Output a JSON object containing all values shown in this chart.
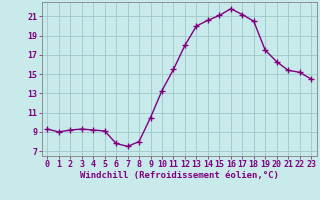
{
  "x": [
    0,
    1,
    2,
    3,
    4,
    5,
    6,
    7,
    8,
    9,
    10,
    11,
    12,
    13,
    14,
    15,
    16,
    17,
    18,
    19,
    20,
    21,
    22,
    23
  ],
  "y": [
    9.3,
    9.0,
    9.2,
    9.3,
    9.2,
    9.1,
    7.8,
    7.5,
    8.0,
    10.5,
    13.3,
    15.5,
    18.0,
    20.0,
    20.6,
    21.1,
    21.8,
    21.2,
    20.5,
    17.5,
    16.3,
    15.4,
    15.2,
    14.5
  ],
  "line_color": "#800080",
  "marker": "+",
  "marker_size": 4,
  "bg_color": "#c8eaea",
  "grid_color": "#a0c8c8",
  "xlabel": "Windchill (Refroidissement éolien,°C)",
  "xlim": [
    -0.5,
    23.5
  ],
  "ylim": [
    6.5,
    22.5
  ],
  "yticks": [
    7,
    9,
    11,
    13,
    15,
    17,
    19,
    21
  ],
  "xticks": [
    0,
    1,
    2,
    3,
    4,
    5,
    6,
    7,
    8,
    9,
    10,
    11,
    12,
    13,
    14,
    15,
    16,
    17,
    18,
    19,
    20,
    21,
    22,
    23
  ],
  "tick_color": "#800080",
  "label_color": "#800080",
  "spine_color": "#808080",
  "font_size_label": 6.5,
  "font_size_tick": 6.0,
  "line_width": 1.0
}
